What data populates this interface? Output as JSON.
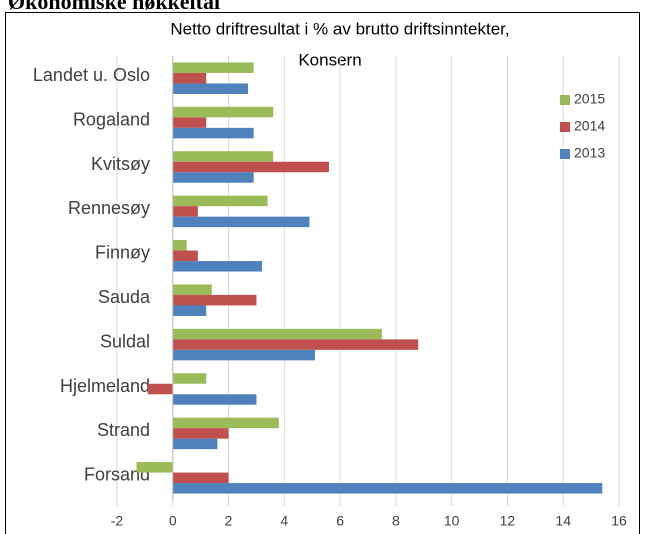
{
  "heading": "Økonomiske nøkkeltal",
  "chart_data": {
    "type": "barh",
    "title": [
      "Netto driftresultat i % av brutto driftsinntekter,",
      "Konsern"
    ],
    "categories": [
      "Landet u. Oslo",
      "Rogaland",
      "Kvitsøy",
      "Rennesøy",
      "Finnøy",
      "Sauda",
      "Suldal",
      "Hjelmeland",
      "Strand",
      "Forsand"
    ],
    "series": [
      {
        "name": "2015",
        "color": "#9bbb59",
        "values": [
          2.9,
          3.6,
          3.6,
          3.4,
          0.5,
          1.4,
          7.5,
          1.2,
          3.8,
          -1.3
        ]
      },
      {
        "name": "2014",
        "color": "#c0504d",
        "values": [
          1.2,
          1.2,
          5.6,
          0.9,
          0.9,
          3.0,
          8.8,
          -0.9,
          2.0,
          2.0
        ]
      },
      {
        "name": "2013",
        "color": "#4f81bd",
        "values": [
          2.7,
          2.9,
          2.9,
          4.9,
          3.2,
          1.2,
          5.1,
          3.0,
          1.6,
          15.4
        ]
      }
    ],
    "xlim": [
      -2,
      16
    ],
    "xticks": [
      -2,
      0,
      2,
      4,
      6,
      8,
      10,
      12,
      14,
      16
    ],
    "grid": true,
    "legend": "upper right"
  }
}
